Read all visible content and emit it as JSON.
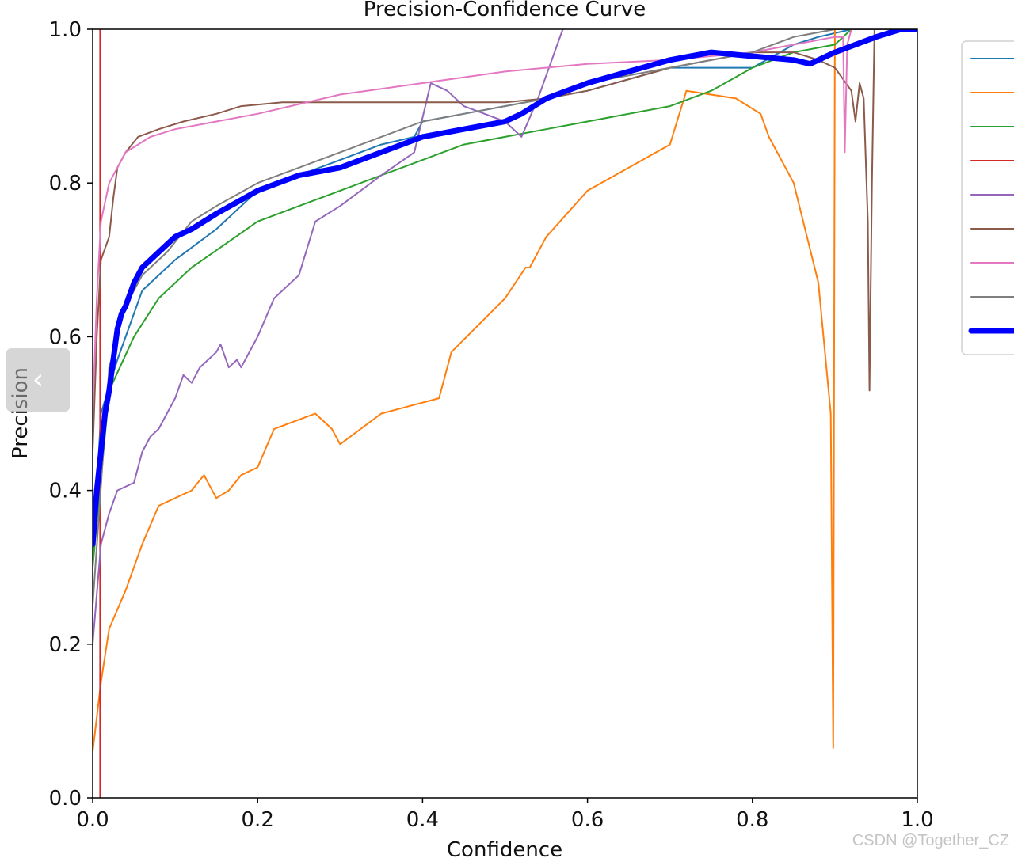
{
  "chart_data": {
    "type": "line",
    "title": "Precision-Confidence Curve",
    "xlabel": "Confidence",
    "ylabel": "Precision",
    "xlim": [
      0,
      1
    ],
    "ylim": [
      0,
      1
    ],
    "xticks": [
      "0.0",
      "0.2",
      "0.4",
      "0.6",
      "0.8",
      "1.0"
    ],
    "yticks": [
      "0.0",
      "0.2",
      "0.4",
      "0.6",
      "0.8",
      "1.0"
    ],
    "grid": false,
    "legend_position": "right, outside plot (labels cut off)",
    "series": [
      {
        "color": "#1f77b4",
        "width": 2,
        "x": [
          0.0,
          0.01,
          0.03,
          0.06,
          0.1,
          0.15,
          0.2,
          0.25,
          0.3,
          0.35,
          0.39,
          0.4,
          0.45,
          0.5,
          0.55,
          0.6,
          0.7,
          0.8,
          0.85,
          0.88,
          0.92,
          0.95,
          1.0
        ],
        "y": [
          0.3,
          0.5,
          0.57,
          0.66,
          0.7,
          0.74,
          0.79,
          0.81,
          0.83,
          0.85,
          0.86,
          0.88,
          0.89,
          0.9,
          0.91,
          0.92,
          0.95,
          0.95,
          0.98,
          0.99,
          1.0,
          1.0,
          1.0
        ]
      },
      {
        "color": "#ff7f0e",
        "width": 2,
        "x": [
          0.0,
          0.01,
          0.02,
          0.04,
          0.06,
          0.08,
          0.12,
          0.135,
          0.15,
          0.165,
          0.18,
          0.2,
          0.22,
          0.27,
          0.29,
          0.3,
          0.35,
          0.42,
          0.435,
          0.5,
          0.525,
          0.53,
          0.55,
          0.6,
          0.7,
          0.72,
          0.78,
          0.81,
          0.82,
          0.85,
          0.88,
          0.895,
          0.898,
          0.9,
          0.92,
          1.0
        ],
        "y": [
          0.06,
          0.15,
          0.22,
          0.27,
          0.33,
          0.38,
          0.4,
          0.42,
          0.39,
          0.4,
          0.42,
          0.43,
          0.48,
          0.5,
          0.48,
          0.46,
          0.5,
          0.52,
          0.58,
          0.65,
          0.69,
          0.69,
          0.73,
          0.79,
          0.85,
          0.92,
          0.91,
          0.89,
          0.86,
          0.8,
          0.67,
          0.5,
          0.065,
          1.0,
          1.0,
          1.0
        ]
      },
      {
        "color": "#2ca02c",
        "width": 2,
        "x": [
          0.0,
          0.02,
          0.05,
          0.08,
          0.12,
          0.16,
          0.2,
          0.25,
          0.3,
          0.35,
          0.4,
          0.45,
          0.5,
          0.55,
          0.6,
          0.65,
          0.7,
          0.75,
          0.8,
          0.85,
          0.9,
          0.92,
          1.0
        ],
        "y": [
          0.3,
          0.53,
          0.6,
          0.65,
          0.69,
          0.72,
          0.75,
          0.77,
          0.79,
          0.81,
          0.83,
          0.85,
          0.86,
          0.87,
          0.88,
          0.89,
          0.9,
          0.92,
          0.95,
          0.97,
          0.98,
          1.0,
          1.0
        ]
      },
      {
        "color": "#d62728",
        "width": 2,
        "x": [
          0.009,
          0.009
        ],
        "y": [
          0.0,
          1.0
        ]
      },
      {
        "color": "#9467bd",
        "width": 2,
        "x": [
          0.0,
          0.01,
          0.02,
          0.03,
          0.05,
          0.06,
          0.07,
          0.08,
          0.09,
          0.1,
          0.11,
          0.12,
          0.13,
          0.15,
          0.155,
          0.165,
          0.175,
          0.18,
          0.2,
          0.22,
          0.25,
          0.27,
          0.3,
          0.35,
          0.39,
          0.41,
          0.43,
          0.45,
          0.5,
          0.52,
          0.54,
          0.57
        ],
        "y": [
          0.2,
          0.33,
          0.37,
          0.4,
          0.41,
          0.45,
          0.47,
          0.48,
          0.5,
          0.52,
          0.55,
          0.54,
          0.56,
          0.58,
          0.59,
          0.56,
          0.57,
          0.56,
          0.6,
          0.65,
          0.68,
          0.75,
          0.77,
          0.81,
          0.84,
          0.93,
          0.92,
          0.9,
          0.88,
          0.86,
          0.91,
          1.0
        ]
      },
      {
        "color": "#8c5a4b",
        "width": 2,
        "x": [
          0.0,
          0.005,
          0.01,
          0.02,
          0.025,
          0.03,
          0.04,
          0.055,
          0.08,
          0.11,
          0.15,
          0.18,
          0.23,
          0.3,
          0.4,
          0.5,
          0.55,
          0.6,
          0.7,
          0.8,
          0.85,
          0.88,
          0.9,
          0.92,
          0.925,
          0.93,
          0.935,
          0.94,
          0.942,
          0.945,
          0.948,
          0.96,
          1.0
        ],
        "y": [
          0.45,
          0.6,
          0.7,
          0.73,
          0.78,
          0.82,
          0.84,
          0.86,
          0.87,
          0.88,
          0.89,
          0.9,
          0.905,
          0.905,
          0.905,
          0.905,
          0.91,
          0.92,
          0.95,
          0.97,
          0.97,
          0.96,
          0.95,
          0.92,
          0.88,
          0.93,
          0.91,
          0.75,
          0.53,
          0.8,
          1.0,
          1.0,
          1.0
        ]
      },
      {
        "color": "#e377c2",
        "width": 2,
        "x": [
          0.0,
          0.005,
          0.01,
          0.02,
          0.04,
          0.07,
          0.1,
          0.15,
          0.2,
          0.3,
          0.4,
          0.5,
          0.6,
          0.7,
          0.8,
          0.85,
          0.9,
          0.91,
          0.912,
          0.915,
          0.92,
          1.0
        ],
        "y": [
          0.5,
          0.65,
          0.75,
          0.8,
          0.84,
          0.86,
          0.87,
          0.88,
          0.89,
          0.915,
          0.93,
          0.945,
          0.955,
          0.96,
          0.97,
          0.98,
          0.99,
          0.99,
          0.84,
          0.98,
          1.0,
          1.0
        ]
      },
      {
        "color": "#7f7f7f",
        "width": 2,
        "x": [
          0.0,
          0.02,
          0.04,
          0.06,
          0.09,
          0.12,
          0.15,
          0.2,
          0.25,
          0.3,
          0.35,
          0.4,
          0.45,
          0.5,
          0.55,
          0.6,
          0.7,
          0.8,
          0.85,
          0.9,
          0.95,
          1.0
        ],
        "y": [
          0.25,
          0.56,
          0.64,
          0.68,
          0.71,
          0.75,
          0.77,
          0.8,
          0.82,
          0.84,
          0.86,
          0.88,
          0.89,
          0.9,
          0.91,
          0.93,
          0.95,
          0.97,
          0.99,
          1.0,
          1.0,
          1.0
        ]
      },
      {
        "color": "#0000ff",
        "width": 7,
        "x": [
          0.0,
          0.005,
          0.01,
          0.015,
          0.02,
          0.025,
          0.03,
          0.035,
          0.04,
          0.05,
          0.06,
          0.08,
          0.1,
          0.12,
          0.15,
          0.2,
          0.25,
          0.3,
          0.35,
          0.4,
          0.45,
          0.5,
          0.52,
          0.55,
          0.6,
          0.65,
          0.7,
          0.75,
          0.8,
          0.85,
          0.87,
          0.9,
          0.95,
          0.98,
          1.0
        ],
        "y": [
          0.33,
          0.4,
          0.45,
          0.5,
          0.53,
          0.57,
          0.61,
          0.63,
          0.64,
          0.67,
          0.69,
          0.71,
          0.73,
          0.74,
          0.76,
          0.79,
          0.81,
          0.82,
          0.84,
          0.86,
          0.87,
          0.88,
          0.89,
          0.91,
          0.93,
          0.945,
          0.96,
          0.97,
          0.965,
          0.96,
          0.955,
          0.97,
          0.99,
          1.0,
          1.0
        ]
      }
    ]
  },
  "nav_button": {
    "glyph": "‹"
  },
  "watermark": "CSDN @Together_CZ"
}
